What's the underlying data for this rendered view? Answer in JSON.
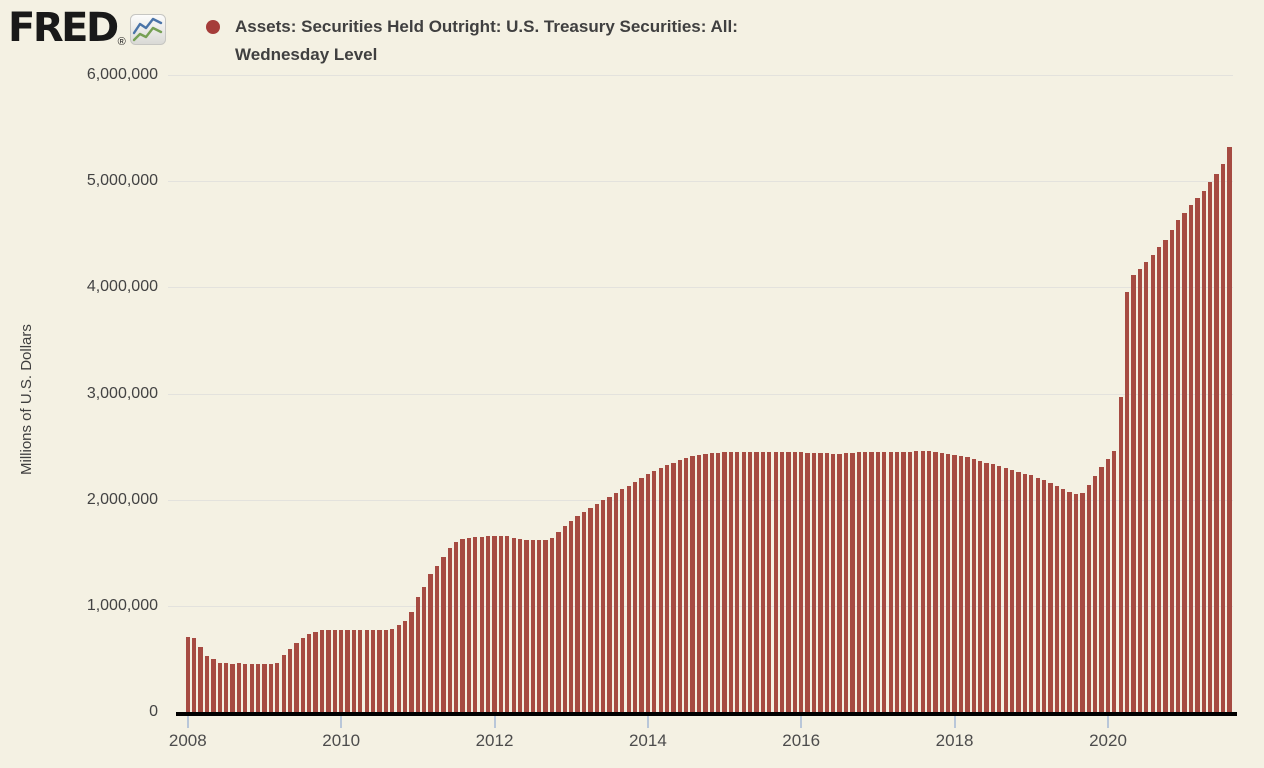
{
  "header": {
    "logo_text": "FRED",
    "logo_reg": "®",
    "legend_dot_color": "#a53d3a",
    "title_lines": {
      "0": "Assets: Securities Held Outright: U.S. Treasury Securities: All:",
      "1": "Wednesday Level"
    }
  },
  "chart_data": {
    "type": "bar",
    "title": "Assets: Securities Held Outright: U.S. Treasury Securities: All: Wednesday Level",
    "xlabel": "",
    "ylabel": "Millions of U.S. Dollars",
    "bar_color": "#a64b42",
    "grid": "horizontal",
    "legend_position": "top",
    "ylim": [
      0,
      6000000
    ],
    "yticks": [
      {
        "value": 0,
        "label": "0"
      },
      {
        "value": 1000000,
        "label": "1,000,000"
      },
      {
        "value": 2000000,
        "label": "2,000,000"
      },
      {
        "value": 3000000,
        "label": "3,000,000"
      },
      {
        "value": 4000000,
        "label": "4,000,000"
      },
      {
        "value": 5000000,
        "label": "5,000,000"
      },
      {
        "value": 6000000,
        "label": "6,000,000"
      }
    ],
    "xtick_labels": [
      "2008",
      "2010",
      "2012",
      "2014",
      "2016",
      "2018",
      "2020"
    ],
    "x_start": "2008-01",
    "x_end": "2021-08",
    "frequency": "monthly",
    "values": [
      710000,
      700000,
      610000,
      525000,
      495000,
      465000,
      458000,
      456000,
      458000,
      455000,
      454000,
      455000,
      455000,
      455000,
      462000,
      535000,
      598000,
      652000,
      695000,
      732000,
      758000,
      770000,
      774000,
      775000,
      776000,
      776000,
      776000,
      776000,
      776000,
      776000,
      776000,
      777000,
      782000,
      818000,
      862000,
      945000,
      1080000,
      1178000,
      1296000,
      1372000,
      1458000,
      1548000,
      1602000,
      1628000,
      1642000,
      1648000,
      1652000,
      1656000,
      1658000,
      1660000,
      1654000,
      1640000,
      1628000,
      1620000,
      1617000,
      1617000,
      1622000,
      1642000,
      1692000,
      1752000,
      1802000,
      1845000,
      1886000,
      1926000,
      1962000,
      1996000,
      2030000,
      2064000,
      2098000,
      2132000,
      2166000,
      2202000,
      2238000,
      2268000,
      2298000,
      2324000,
      2350000,
      2372000,
      2392000,
      2410000,
      2424000,
      2434000,
      2440000,
      2443000,
      2445000,
      2446000,
      2446000,
      2446000,
      2446000,
      2446000,
      2446000,
      2446000,
      2446000,
      2446000,
      2446000,
      2446000,
      2446000,
      2444000,
      2442000,
      2438000,
      2436000,
      2434000,
      2434000,
      2436000,
      2442000,
      2446000,
      2448000,
      2448000,
      2448000,
      2450000,
      2452000,
      2454000,
      2454000,
      2454000,
      2456000,
      2458000,
      2458000,
      2452000,
      2444000,
      2434000,
      2424000,
      2412000,
      2398000,
      2384000,
      2366000,
      2348000,
      2332000,
      2314000,
      2296000,
      2282000,
      2264000,
      2244000,
      2230000,
      2208000,
      2182000,
      2154000,
      2128000,
      2098000,
      2070000,
      2054000,
      2064000,
      2140000,
      2222000,
      2312000,
      2382000,
      2462000,
      2972000,
      3952000,
      4112000,
      4175000,
      4240000,
      4308000,
      4378000,
      4448000,
      4538000,
      4630000,
      4702000,
      4772000,
      4842000,
      4912000,
      4992000,
      5072000,
      5162000,
      5322000
    ]
  }
}
